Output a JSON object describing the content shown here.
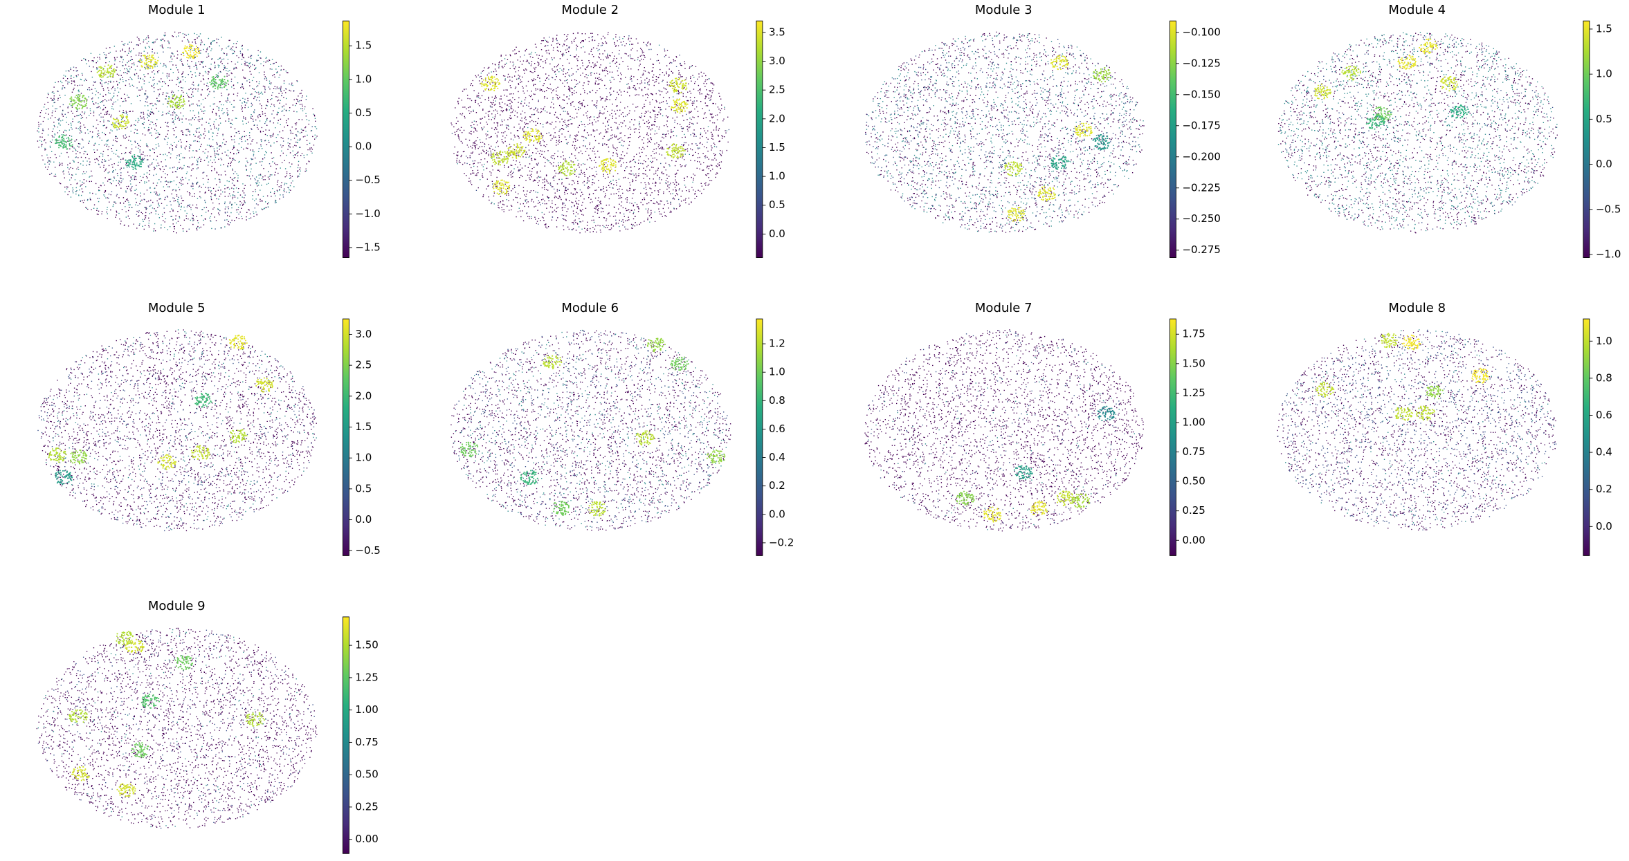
{
  "chart_data": [
    {
      "type": "scatter",
      "title": "Module 1",
      "colormap": "viridis",
      "x": [
        -0.5,
        -0.2,
        0.1,
        -0.7,
        -0.4,
        0.0,
        0.3,
        -0.3,
        -0.8
      ],
      "y": [
        -0.6,
        -0.7,
        -0.8,
        -0.3,
        -0.1,
        -0.3,
        -0.5,
        0.3,
        0.1
      ],
      "values": [
        1.5,
        1.7,
        1.8,
        1.2,
        1.6,
        1.4,
        1.0,
        0.5,
        0.8
      ],
      "clim": [
        -1.65,
        1.87
      ],
      "cticks": [
        {
          "value": -1.5,
          "label": "−1.5"
        },
        {
          "value": -1.0,
          "label": "−1.0"
        },
        {
          "value": -0.5,
          "label": "−0.5"
        },
        {
          "value": 0,
          "label": "0.0"
        },
        0.5,
        {
          "value": 1,
          "label": "1.0"
        },
        1.5
      ]
    },
    {
      "type": "scatter",
      "title": "Module 2",
      "colormap": "viridis",
      "x": [
        -0.71,
        -0.53,
        -0.41,
        -0.64,
        -0.63,
        -0.16,
        0.13,
        0.63,
        0.64,
        0.61
      ],
      "y": [
        -0.48,
        0.19,
        0.04,
        0.26,
        0.55,
        0.36,
        0.34,
        -0.46,
        -0.26,
        0.19
      ],
      "values": [
        3.5,
        3.4,
        3.5,
        3.3,
        3.5,
        3.2,
        3.5,
        3.4,
        3.5,
        3.3
      ],
      "clim": [
        -0.41,
        3.7
      ],
      "cticks": [
        {
          "value": 0,
          "label": "0.0"
        },
        0.5,
        {
          "value": 1,
          "label": "1.0"
        },
        1.5,
        {
          "value": 2,
          "label": "2.0"
        },
        2.5,
        {
          "value": 3,
          "label": "3.0"
        },
        3.5
      ]
    },
    {
      "type": "scatter",
      "title": "Module 3",
      "colormap": "viridis",
      "x": [
        0.4,
        0.57,
        0.07,
        0.31,
        0.09,
        0.7,
        0.4,
        0.7
      ],
      "y": [
        -0.69,
        -0.02,
        0.36,
        0.61,
        0.82,
        -0.57,
        0.3,
        0.1
      ],
      "values": [
        -0.1,
        -0.1,
        -0.11,
        -0.1,
        -0.1,
        -0.12,
        -0.17,
        -0.18
      ],
      "clim": [
        -0.281,
        -0.0908
      ],
      "cticks": [
        {
          "value": -0.275,
          "label": "−0.275"
        },
        {
          "value": -0.25,
          "label": "−0.250"
        },
        {
          "value": -0.225,
          "label": "−0.225"
        },
        {
          "value": -0.2,
          "label": "−0.200"
        },
        {
          "value": -0.175,
          "label": "−0.175"
        },
        {
          "value": -0.15,
          "label": "−0.150"
        },
        {
          "value": -0.125,
          "label": "−0.125"
        },
        {
          "value": -0.1,
          "label": "−0.100"
        }
      ]
    },
    {
      "type": "scatter",
      "title": "Module 4",
      "colormap": "viridis",
      "x": [
        -0.07,
        0.08,
        -0.68,
        -0.47,
        0.23,
        -0.25,
        -0.3,
        0.3
      ],
      "y": [
        -0.69,
        -0.85,
        -0.4,
        -0.59,
        -0.48,
        -0.18,
        -0.1,
        -0.2
      ],
      "values": [
        1.5,
        1.5,
        1.4,
        1.3,
        1.4,
        1.0,
        0.7,
        0.6
      ],
      "clim": [
        -1.035,
        1.59
      ],
      "cticks": [
        {
          "value": -1.0,
          "label": "−1.0"
        },
        {
          "value": -0.5,
          "label": "−0.5"
        },
        {
          "value": 0,
          "label": "0.0"
        },
        0.5,
        {
          "value": 1,
          "label": "1.0"
        },
        1.5
      ]
    },
    {
      "type": "scatter",
      "title": "Module 5",
      "colormap": "viridis",
      "x": [
        0.44,
        0.63,
        -0.85,
        -0.7,
        -0.07,
        0.17,
        0.44,
        0.19,
        -0.81
      ],
      "y": [
        -0.87,
        -0.45,
        0.25,
        0.27,
        0.32,
        0.23,
        0.06,
        -0.3,
        0.47
      ],
      "values": [
        3.1,
        3.0,
        2.8,
        2.6,
        3.0,
        2.9,
        2.8,
        2.0,
        1.5
      ],
      "clim": [
        -0.58,
        3.25
      ],
      "cticks": [
        {
          "value": -0.5,
          "label": "−0.5"
        },
        {
          "value": 0,
          "label": "0.0"
        },
        0.5,
        {
          "value": 1,
          "label": "1.0"
        },
        1.5,
        {
          "value": 2,
          "label": "2.0"
        },
        2.5,
        {
          "value": 3,
          "label": "3.0"
        }
      ]
    },
    {
      "type": "scatter",
      "title": "Module 6",
      "colormap": "viridis",
      "x": [
        -0.27,
        0.47,
        0.64,
        0.39,
        -0.86,
        0.9,
        0.05,
        -0.21,
        -0.43
      ],
      "y": [
        -0.68,
        -0.85,
        -0.66,
        0.08,
        0.19,
        0.27,
        0.78,
        0.78,
        0.47
      ],
      "values": [
        1.2,
        1.1,
        1.0,
        1.2,
        1.0,
        1.1,
        1.2,
        1.0,
        0.8
      ],
      "clim": [
        -0.29,
        1.375
      ],
      "cticks": [
        {
          "value": -0.2,
          "label": "−0.2"
        },
        {
          "value": 0,
          "label": "0.0"
        },
        0.2,
        0.4,
        0.6,
        0.8,
        {
          "value": 1,
          "label": "1.0"
        },
        1.2
      ]
    },
    {
      "type": "scatter",
      "title": "Module 7",
      "colormap": "viridis",
      "x": [
        -0.08,
        0.25,
        0.44,
        0.55,
        -0.27,
        0.14,
        0.73
      ],
      "y": [
        0.84,
        0.78,
        0.68,
        0.7,
        0.68,
        0.42,
        -0.16
      ],
      "values": [
        1.8,
        1.8,
        1.7,
        1.6,
        1.5,
        1.0,
        0.8
      ],
      "clim": [
        -0.13,
        1.88
      ],
      "cticks": [
        {
          "value": 0,
          "label": "0.00"
        },
        0.25,
        {
          "value": 0.5,
          "label": "0.50"
        },
        0.75,
        {
          "value": 1,
          "label": "1.00"
        },
        1.25,
        {
          "value": 1.5,
          "label": "1.50"
        },
        1.75
      ]
    },
    {
      "type": "scatter",
      "title": "Module 8",
      "colormap": "viridis",
      "x": [
        -0.2,
        -0.04,
        0.45,
        -0.66,
        0.13,
        -0.1,
        0.06
      ],
      "y": [
        -0.89,
        -0.87,
        -0.54,
        -0.4,
        -0.38,
        -0.16,
        -0.17
      ],
      "values": [
        1.0,
        1.1,
        1.1,
        1.0,
        0.9,
        1.0,
        1.0
      ],
      "clim": [
        -0.157,
        1.12
      ],
      "cticks": [
        {
          "value": 0,
          "label": "0.0"
        },
        0.2,
        0.4,
        0.6,
        0.8,
        {
          "value": 1,
          "label": "1.0"
        }
      ]
    },
    {
      "type": "scatter",
      "title": "Module 9",
      "colormap": "viridis",
      "x": [
        -0.37,
        -0.3,
        0.05,
        -0.7,
        -0.19,
        -0.26,
        -0.68,
        -0.36,
        0.56
      ],
      "y": [
        -0.89,
        -0.81,
        -0.65,
        -0.11,
        -0.27,
        0.22,
        0.45,
        0.61,
        -0.09
      ],
      "values": [
        1.5,
        1.6,
        1.3,
        1.5,
        1.2,
        1.3,
        1.6,
        1.6,
        1.5
      ],
      "clim": [
        -0.11,
        1.72
      ],
      "cticks": [
        {
          "value": 0,
          "label": "0.00"
        },
        0.25,
        {
          "value": 0.5,
          "label": "0.50"
        },
        0.75,
        {
          "value": 1,
          "label": "1.00"
        },
        1.25,
        {
          "value": 1.5,
          "label": "1.50"
        }
      ]
    }
  ]
}
